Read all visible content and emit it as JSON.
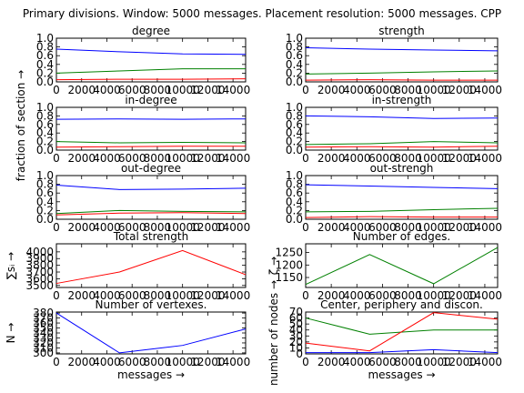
{
  "suptitle": "Primary divisions. Window: 5000 messages. Placement resolution: 5000 messages. CPP",
  "left_ylabel": "fraction of section →",
  "colors": {
    "blue": "#0000ff",
    "green": "#008000",
    "red": "#ff0000"
  },
  "chart_data": [
    {
      "type": "line",
      "title": "degree",
      "x": [
        0,
        5000,
        10000,
        15000
      ],
      "xlim": [
        0,
        15000
      ],
      "xticks": [
        0,
        2000,
        4000,
        6000,
        8000,
        10000,
        12000,
        14000
      ],
      "ylim": [
        0,
        1
      ],
      "yticks": [
        "0.0",
        "0.2",
        "0.4",
        "0.6",
        "0.8",
        "1.0"
      ],
      "series": [
        {
          "color": "blue",
          "values": [
            0.75,
            0.69,
            0.64,
            0.63
          ]
        },
        {
          "color": "green",
          "values": [
            0.2,
            0.25,
            0.3,
            0.3
          ]
        },
        {
          "color": "red",
          "values": [
            0.05,
            0.06,
            0.06,
            0.07
          ]
        }
      ]
    },
    {
      "type": "line",
      "title": "strength",
      "x": [
        0,
        5000,
        10000,
        15000
      ],
      "xlim": [
        0,
        15000
      ],
      "xticks": [
        0,
        2000,
        4000,
        6000,
        8000,
        10000,
        12000,
        14000
      ],
      "ylim": [
        0,
        1
      ],
      "yticks": [
        "0.0",
        "0.2",
        "0.4",
        "0.6",
        "0.8",
        "1.0"
      ],
      "series": [
        {
          "color": "blue",
          "values": [
            0.78,
            0.75,
            0.73,
            0.71
          ]
        },
        {
          "color": "green",
          "values": [
            0.18,
            0.2,
            0.23,
            0.25
          ]
        },
        {
          "color": "red",
          "values": [
            0.04,
            0.05,
            0.04,
            0.04
          ]
        }
      ]
    },
    {
      "type": "line",
      "title": "in-degree",
      "x": [
        0,
        5000,
        10000,
        15000
      ],
      "xlim": [
        0,
        15000
      ],
      "xticks": [
        0,
        2000,
        4000,
        6000,
        8000,
        10000,
        12000,
        14000
      ],
      "ylim": [
        0,
        1
      ],
      "yticks": [
        "0.0",
        "0.2",
        "0.4",
        "0.6",
        "0.8",
        "1.0"
      ],
      "series": [
        {
          "color": "blue",
          "values": [
            0.72,
            0.73,
            0.72,
            0.73
          ]
        },
        {
          "color": "green",
          "values": [
            0.2,
            0.17,
            0.18,
            0.17
          ]
        },
        {
          "color": "red",
          "values": [
            0.07,
            0.08,
            0.09,
            0.09
          ]
        }
      ]
    },
    {
      "type": "line",
      "title": "in-strength",
      "x": [
        0,
        5000,
        10000,
        15000
      ],
      "xlim": [
        0,
        15000
      ],
      "xticks": [
        0,
        2000,
        4000,
        6000,
        8000,
        10000,
        12000,
        14000
      ],
      "ylim": [
        0,
        1
      ],
      "yticks": [
        "0.0",
        "0.2",
        "0.4",
        "0.6",
        "0.8",
        "1.0"
      ],
      "series": [
        {
          "color": "blue",
          "values": [
            0.8,
            0.78,
            0.74,
            0.75
          ]
        },
        {
          "color": "green",
          "values": [
            0.13,
            0.15,
            0.2,
            0.17
          ]
        },
        {
          "color": "red",
          "values": [
            0.07,
            0.08,
            0.07,
            0.09
          ]
        }
      ]
    },
    {
      "type": "line",
      "title": "out-degree",
      "x": [
        0,
        5000,
        10000,
        15000
      ],
      "xlim": [
        0,
        15000
      ],
      "xticks": [
        0,
        2000,
        4000,
        6000,
        8000,
        10000,
        12000,
        14000
      ],
      "ylim": [
        0,
        1
      ],
      "yticks": [
        "0.0",
        "0.2",
        "0.4",
        "0.6",
        "0.8",
        "1.0"
      ],
      "series": [
        {
          "color": "blue",
          "values": [
            0.78,
            0.68,
            0.69,
            0.71
          ]
        },
        {
          "color": "green",
          "values": [
            0.13,
            0.2,
            0.18,
            0.17
          ]
        },
        {
          "color": "red",
          "values": [
            0.1,
            0.14,
            0.15,
            0.13
          ]
        }
      ]
    },
    {
      "type": "line",
      "title": "out-strengh",
      "x": [
        0,
        5000,
        10000,
        15000
      ],
      "xlim": [
        0,
        15000
      ],
      "xticks": [
        0,
        2000,
        4000,
        6000,
        8000,
        10000,
        12000,
        14000
      ],
      "ylim": [
        0,
        1
      ],
      "yticks": [
        "0.0",
        "0.2",
        "0.4",
        "0.6",
        "0.8",
        "1.0"
      ],
      "series": [
        {
          "color": "blue",
          "values": [
            0.79,
            0.76,
            0.73,
            0.7
          ]
        },
        {
          "color": "green",
          "values": [
            0.17,
            0.18,
            0.22,
            0.25
          ]
        },
        {
          "color": "red",
          "values": [
            0.04,
            0.06,
            0.05,
            0.05
          ]
        }
      ]
    },
    {
      "type": "line",
      "title": "Total strength",
      "ylabel": "∑sᵢ →",
      "x": [
        0,
        5000,
        10000,
        15000
      ],
      "xlim": [
        0,
        15000
      ],
      "xticks": [
        0,
        2000,
        4000,
        6000,
        8000,
        10000,
        12000,
        14000
      ],
      "ylim": [
        3470,
        4120
      ],
      "yticks": [
        "3500",
        "3600",
        "3700",
        "3800",
        "3900",
        "4000"
      ],
      "series": [
        {
          "color": "red",
          "values": [
            3530,
            3700,
            4020,
            3660
          ]
        }
      ]
    },
    {
      "type": "line",
      "title": "Number of edges.",
      "ylabel": "ζ →",
      "x": [
        0,
        5000,
        10000,
        15000
      ],
      "xlim": [
        0,
        15000
      ],
      "xticks": [
        0,
        2000,
        4000,
        6000,
        8000,
        10000,
        12000,
        14000
      ],
      "ylim": [
        1110,
        1285
      ],
      "yticks": [
        "1150",
        "1200",
        "1250"
      ],
      "series": [
        {
          "color": "green",
          "values": [
            1122,
            1242,
            1125,
            1270
          ]
        }
      ]
    },
    {
      "type": "line",
      "title": "Number of vertexes.",
      "xlabel": "messages →",
      "ylabel": "N →",
      "x": [
        0,
        5000,
        10000,
        15000
      ],
      "xlim": [
        0,
        15000
      ],
      "xticks": [
        0,
        2000,
        4000,
        6000,
        8000,
        10000,
        12000,
        14000
      ],
      "ylim": [
        298,
        382
      ],
      "yticks": [
        "300",
        "310",
        "320",
        "330",
        "340",
        "350",
        "360",
        "370",
        "380"
      ],
      "series": [
        {
          "color": "blue",
          "values": [
            380,
            300,
            315,
            348
          ]
        }
      ]
    },
    {
      "type": "line",
      "title": "Center, periphery and discon.",
      "xlabel": "messages →",
      "ylabel": "number of nodes →",
      "x": [
        0,
        5000,
        10000,
        15000
      ],
      "xlim": [
        0,
        15000
      ],
      "xticks": [
        0,
        2000,
        4000,
        6000,
        8000,
        10000,
        12000,
        14000
      ],
      "ylim": [
        0,
        70
      ],
      "yticks": [
        "0",
        "10",
        "20",
        "30",
        "40",
        "50",
        "60",
        "70"
      ],
      "series": [
        {
          "color": "green",
          "values": [
            60,
            33,
            40,
            40
          ]
        },
        {
          "color": "red",
          "values": [
            18,
            5,
            69,
            58
          ]
        },
        {
          "color": "blue",
          "values": [
            2,
            2,
            7,
            2
          ]
        }
      ]
    }
  ]
}
